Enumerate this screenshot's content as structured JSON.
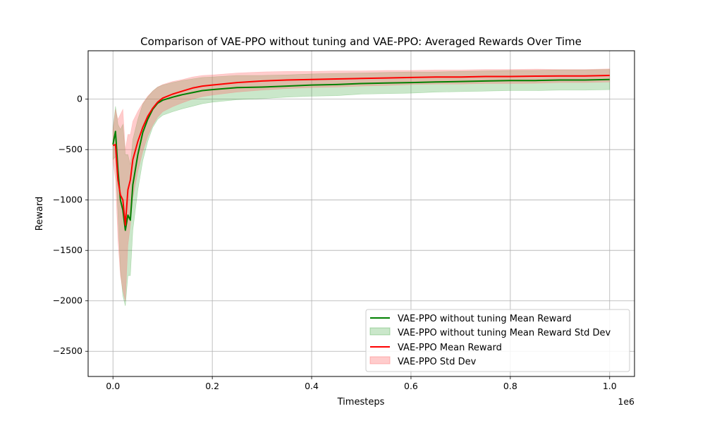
{
  "chart_data": {
    "type": "line",
    "title": "Comparison of VAE-PPO without tuning and VAE-PPO: Averaged Rewards Over Time",
    "xlabel": "Timesteps",
    "ylabel": "Reward",
    "x_offset_label": "1e6",
    "xlim": [
      -50000,
      1050000
    ],
    "ylim": [
      -2750,
      480
    ],
    "x_ticks": [
      0,
      200000,
      400000,
      600000,
      800000,
      1000000
    ],
    "x_tick_labels": [
      "0.0",
      "0.2",
      "0.4",
      "0.6",
      "0.8",
      "1.0"
    ],
    "y_ticks": [
      -2500,
      -2000,
      -1500,
      -1000,
      -500,
      0
    ],
    "y_tick_labels": [
      "−2500",
      "−2000",
      "−1500",
      "−1000",
      "−500",
      "0"
    ],
    "grid": true,
    "legend_position": "lower-right",
    "x": [
      0,
      5000,
      10000,
      15000,
      20000,
      25000,
      30000,
      35000,
      40000,
      50000,
      60000,
      70000,
      80000,
      90000,
      100000,
      120000,
      140000,
      160000,
      180000,
      200000,
      250000,
      300000,
      350000,
      400000,
      450000,
      500000,
      550000,
      600000,
      650000,
      700000,
      750000,
      800000,
      850000,
      900000,
      950000,
      1000000
    ],
    "series": [
      {
        "name": "VAE-PPO without tuning Mean Reward",
        "std_label": "VAE-PPO without tuning Mean Reward Std Dev",
        "color": "#008000",
        "fill_color": "#2ca02c",
        "values": [
          -450,
          -320,
          -700,
          -1000,
          -1100,
          -1300,
          -1150,
          -1200,
          -850,
          -550,
          -330,
          -200,
          -100,
          -40,
          -10,
          20,
          45,
          65,
          85,
          95,
          115,
          120,
          130,
          140,
          145,
          155,
          160,
          165,
          170,
          175,
          180,
          185,
          185,
          190,
          190,
          195
        ],
        "std": [
          150,
          250,
          450,
          700,
          850,
          750,
          600,
          550,
          450,
          350,
          280,
          220,
          180,
          160,
          150,
          145,
          140,
          135,
          130,
          125,
          120,
          115,
          110,
          110,
          110,
          105,
          105,
          105,
          100,
          100,
          100,
          100,
          100,
          100,
          100,
          100
        ]
      },
      {
        "name": "VAE-PPO Mean Reward",
        "std_label": "VAE-PPO Std Dev",
        "color": "#ff0000",
        "fill_color": "#ff6e6e",
        "values": [
          -460,
          -450,
          -800,
          -950,
          -1000,
          -1250,
          -900,
          -800,
          -600,
          -420,
          -280,
          -170,
          -90,
          -30,
          10,
          50,
          80,
          110,
          130,
          140,
          165,
          180,
          190,
          195,
          200,
          205,
          210,
          215,
          220,
          220,
          225,
          225,
          228,
          230,
          230,
          235
        ],
        "std": [
          150,
          350,
          600,
          800,
          900,
          750,
          550,
          450,
          380,
          300,
          240,
          200,
          170,
          150,
          135,
          125,
          115,
          110,
          105,
          100,
          95,
          90,
          85,
          80,
          80,
          75,
          75,
          70,
          70,
          70,
          70,
          70,
          70,
          65,
          65,
          65
        ]
      }
    ]
  }
}
